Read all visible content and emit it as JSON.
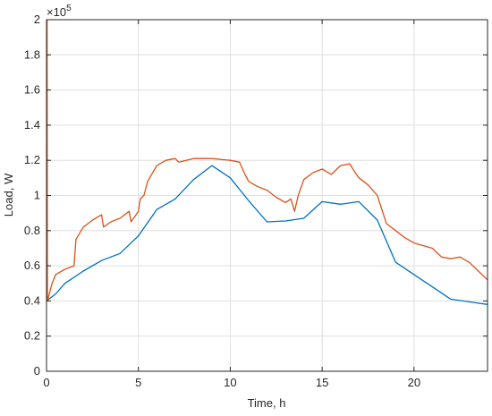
{
  "chart_data": {
    "type": "line",
    "title": "",
    "xlabel": "Time, h",
    "ylabel": "Load, W",
    "exponent_label": "×10",
    "exponent_power": "5",
    "xlim": [
      0,
      24
    ],
    "ylim": [
      0,
      200000
    ],
    "xticks": [
      0,
      5,
      10,
      15,
      20
    ],
    "yticks": [
      0,
      20000,
      40000,
      60000,
      80000,
      100000,
      120000,
      140000,
      160000,
      180000,
      200000
    ],
    "ytick_labels": [
      "0",
      "0.2",
      "0.4",
      "0.6",
      "0.8",
      "1",
      "1.2",
      "1.4",
      "1.6",
      "1.8",
      "2"
    ],
    "grid": true,
    "legend": "none",
    "series": [
      {
        "color": "#0072BD",
        "x": [
          0,
          0.5,
          1,
          2,
          3,
          4,
          5,
          6,
          7,
          8,
          9,
          10,
          11,
          12,
          13,
          14,
          15,
          16,
          17,
          18,
          19,
          20,
          21,
          22,
          23,
          24
        ],
        "y": [
          40000,
          44000,
          50000,
          57000,
          63000,
          67000,
          77000,
          92000,
          98000,
          109000,
          117000,
          110000,
          97000,
          85000,
          85500,
          87000,
          96500,
          95000,
          96500,
          86000,
          62000,
          55000,
          48000,
          41000,
          39500,
          38000
        ]
      },
      {
        "color": "#D95319",
        "x": [
          0,
          0.03,
          0.05,
          0.3,
          0.5,
          1,
          1.5,
          1.6,
          2,
          2.5,
          3,
          3.1,
          3.5,
          4,
          4.5,
          4.6,
          5,
          5.1,
          5.3,
          5.5,
          6,
          6.5,
          7,
          7.2,
          8,
          9,
          10,
          10.5,
          10.8,
          11,
          11.5,
          12,
          12.5,
          13,
          13.3,
          13.5,
          13.7,
          14,
          14.5,
          15,
          15.5,
          16,
          16.5,
          16.8,
          17,
          17.5,
          18,
          18.5,
          19,
          19.5,
          20,
          21,
          21.5,
          22,
          22.5,
          23,
          23.5,
          24
        ],
        "y": [
          200000,
          200000,
          40000,
          50000,
          55000,
          58000,
          60000,
          75000,
          82000,
          86000,
          89000,
          82000,
          85000,
          87000,
          91000,
          85000,
          91000,
          98000,
          100000,
          108000,
          117000,
          120000,
          121000,
          119000,
          121000,
          121000,
          120000,
          119000,
          112000,
          108000,
          105000,
          103000,
          99000,
          96000,
          98000,
          91000,
          100000,
          109000,
          113000,
          115000,
          112000,
          117000,
          118000,
          113000,
          110000,
          106000,
          100000,
          84000,
          80000,
          76000,
          73000,
          70000,
          65000,
          64000,
          65000,
          62000,
          57000,
          52000
        ]
      }
    ]
  }
}
